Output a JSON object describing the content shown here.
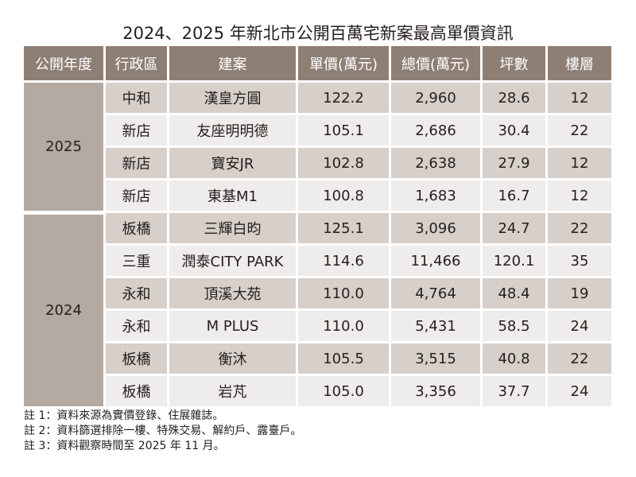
{
  "title": "2024、2025 年新北市公開百萬宅新案最高單價資訊",
  "colors": {
    "header": "#8e7f75",
    "year_cell": "#b5aaa2",
    "row_dark": "#d6cfca",
    "row_light": "#efedeb"
  },
  "headers": [
    "公開年度",
    "行政區",
    "建案",
    "單價(萬元)",
    "總價(萬元)",
    "坪數",
    "樓層"
  ],
  "groups": [
    {
      "year": "2025",
      "rows": [
        [
          "中和",
          "漢皇方圓",
          "122.2",
          "2,960",
          "28.6",
          "12"
        ],
        [
          "新店",
          "友座明明德",
          "105.1",
          "2,686",
          "30.4",
          "22"
        ],
        [
          "新店",
          "寶安JR",
          "102.8",
          "2,638",
          "27.9",
          "12"
        ],
        [
          "新店",
          "東基M1",
          "100.8",
          "1,683",
          "16.7",
          "12"
        ]
      ]
    },
    {
      "year": "2024",
      "rows": [
        [
          "板橋",
          "三輝白昀",
          "125.1",
          "3,096",
          "24.7",
          "22"
        ],
        [
          "三重",
          "潤泰CITY PARK",
          "114.6",
          "11,466",
          "120.1",
          "35"
        ],
        [
          "永和",
          "頂溪大苑",
          "110.0",
          "4,764",
          "48.4",
          "19"
        ],
        [
          "永和",
          "M PLUS",
          "110.0",
          "5,431",
          "58.5",
          "24"
        ],
        [
          "板橋",
          "衡沐",
          "105.5",
          "3,515",
          "40.8",
          "22"
        ],
        [
          "板橋",
          "岩芃",
          "105.0",
          "3,356",
          "37.7",
          "24"
        ]
      ]
    }
  ],
  "notes": [
    "註 1：資料來源為實價登錄、住展雜誌。",
    "註 2：資料篩選排除一樓、特殊交易、解約戶、露臺戶。",
    "註 3：資料觀察時間至 2025 年 11 月。"
  ]
}
